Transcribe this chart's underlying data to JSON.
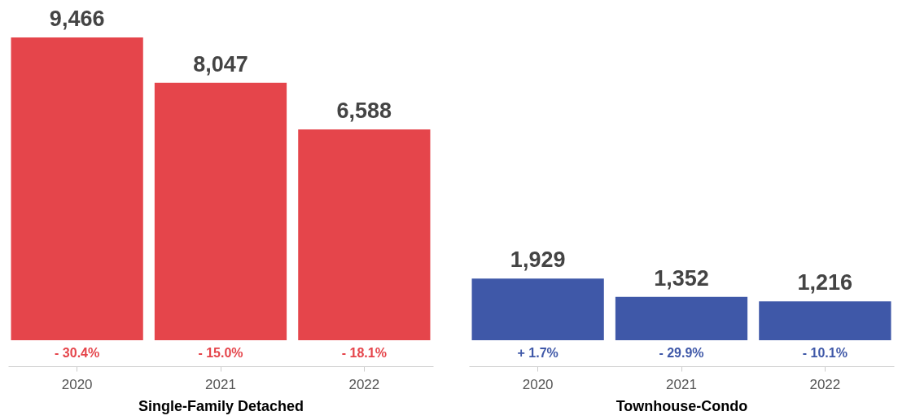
{
  "chart_data": [
    {
      "type": "bar",
      "xlabel": "Single-Family Detached",
      "categories": [
        "2020",
        "2021",
        "2022"
      ],
      "values": [
        9466,
        8047,
        6588
      ],
      "value_labels": [
        "9,466",
        "8,047",
        "6,588"
      ],
      "color": "#e5454b",
      "annotations": [
        "- 30.4%",
        "- 15.0%",
        "- 18.1%"
      ]
    },
    {
      "type": "bar",
      "xlabel": "Townhouse-Condo",
      "categories": [
        "2020",
        "2021",
        "2022"
      ],
      "values": [
        1929,
        1352,
        1216
      ],
      "value_labels": [
        "1,929",
        "1,352",
        "1,216"
      ],
      "color": "#3f58a8",
      "annotations": [
        "+ 1.7%",
        "- 29.9%",
        "- 10.1%"
      ]
    }
  ]
}
